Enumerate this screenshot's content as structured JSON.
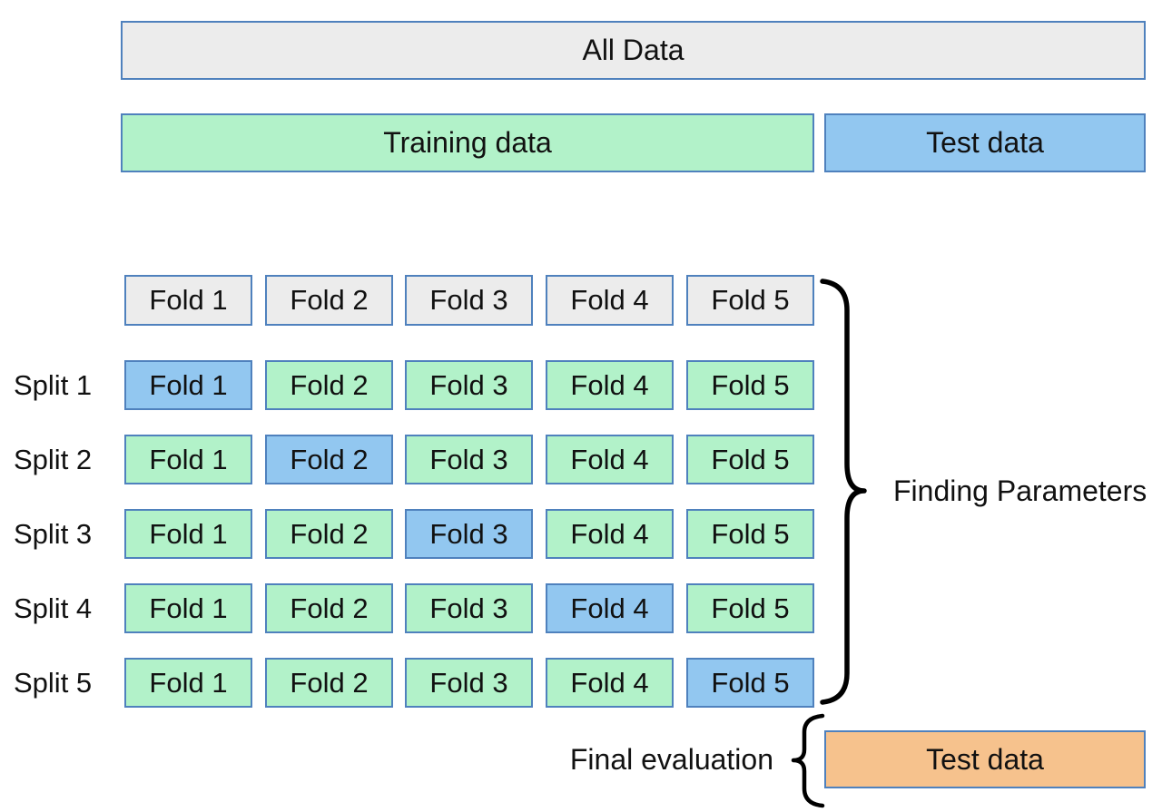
{
  "title_bars": {
    "all_data": "All Data",
    "training": "Training data",
    "test": "Test data"
  },
  "cv_grid": {
    "fold_headers": [
      "Fold 1",
      "Fold 2",
      "Fold 3",
      "Fold 4",
      "Fold 5"
    ],
    "splits": [
      {
        "label": "Split 1",
        "folds": [
          "Fold 1",
          "Fold 2",
          "Fold 3",
          "Fold 4",
          "Fold 5"
        ],
        "test_fold_index": 0
      },
      {
        "label": "Split 2",
        "folds": [
          "Fold 1",
          "Fold 2",
          "Fold 3",
          "Fold 4",
          "Fold 5"
        ],
        "test_fold_index": 1
      },
      {
        "label": "Split 3",
        "folds": [
          "Fold 1",
          "Fold 2",
          "Fold 3",
          "Fold 4",
          "Fold 5"
        ],
        "test_fold_index": 2
      },
      {
        "label": "Split 4",
        "folds": [
          "Fold 1",
          "Fold 2",
          "Fold 3",
          "Fold 4",
          "Fold 5"
        ],
        "test_fold_index": 3
      },
      {
        "label": "Split 5",
        "folds": [
          "Fold 1",
          "Fold 2",
          "Fold 3",
          "Fold 4",
          "Fold 5"
        ],
        "test_fold_index": 4
      }
    ],
    "brace_label": "Finding Parameters"
  },
  "final_evaluation": {
    "label": "Final evaluation",
    "test_box": "Test data"
  },
  "colors": {
    "background": "#ffffff",
    "border": "#4f81bd",
    "gray": "#ececec",
    "green": "#b2f2c9",
    "blue": "#92c7f0",
    "orange": "#f6c28d",
    "text": "#111111",
    "brace": "#000000"
  }
}
